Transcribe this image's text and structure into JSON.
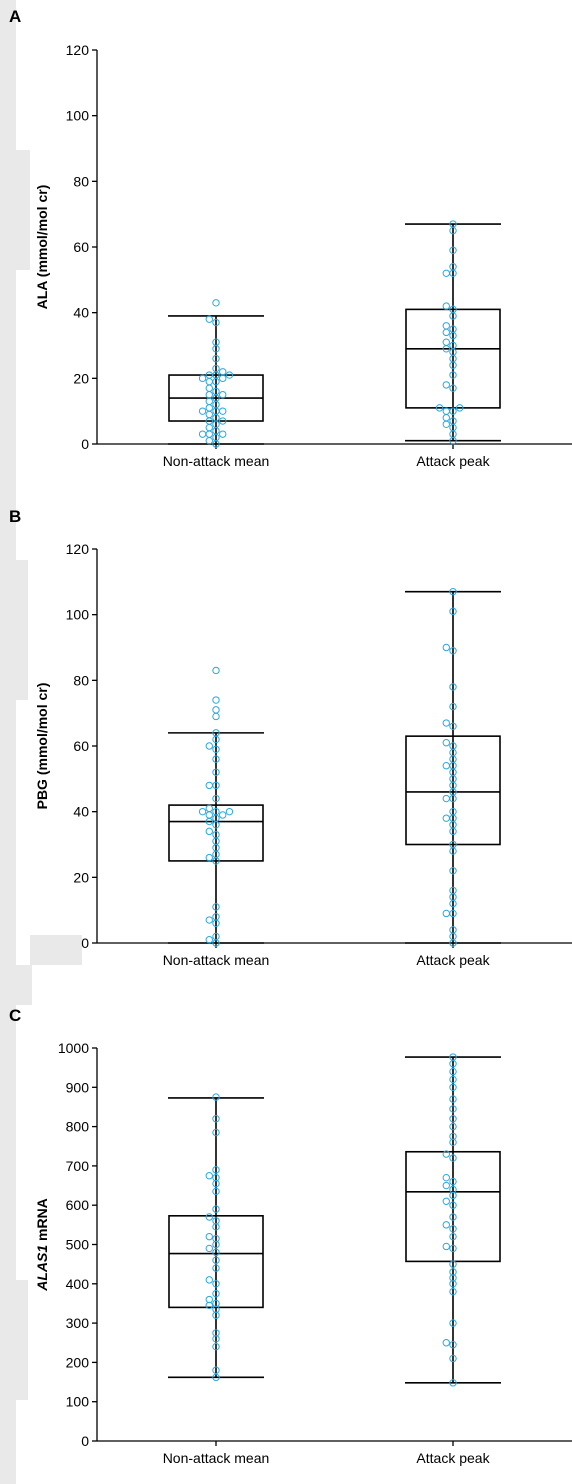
{
  "colors": {
    "point": "#2aa8e0",
    "box": "#000000",
    "background_shape": "#e9e9e9"
  },
  "chart_data": [
    {
      "panel": "A",
      "type": "box",
      "ylabel_parts": [
        {
          "text": "ALA (mmol/mol cr)",
          "italic": false
        }
      ],
      "categories": [
        "Non-attack mean",
        "Attack peak"
      ],
      "ylim": [
        0,
        120
      ],
      "yticks": [
        "0",
        "20",
        "40",
        "60",
        "80",
        "100",
        "120"
      ],
      "series": [
        {
          "category": "Non-attack mean",
          "box": {
            "min": 0,
            "q1": 7,
            "median": 14,
            "q3": 21,
            "max": 39
          },
          "points": [
            0,
            1,
            2,
            3,
            3,
            3,
            4,
            5,
            6,
            7,
            7,
            8,
            9,
            10,
            10,
            10,
            11,
            12,
            13,
            14,
            15,
            15,
            16,
            17,
            19,
            19,
            20,
            20,
            21,
            21,
            21,
            22,
            23,
            26,
            29,
            31,
            37,
            38,
            43
          ]
        },
        {
          "category": "Attack peak",
          "box": {
            "min": 1,
            "q1": 11,
            "median": 29,
            "q3": 41,
            "max": 67
          },
          "points": [
            1,
            3,
            5,
            6,
            7,
            8,
            10,
            10,
            11,
            11,
            17,
            18,
            21,
            24,
            26,
            28,
            29,
            30,
            31,
            33,
            34,
            35,
            36,
            39,
            41,
            42,
            52,
            52,
            54,
            59,
            65,
            67
          ]
        }
      ]
    },
    {
      "panel": "B",
      "type": "box",
      "ylabel_parts": [
        {
          "text": "PBG (mmol/mol cr)",
          "italic": false
        }
      ],
      "categories": [
        "Non-attack mean",
        "Attack peak"
      ],
      "ylim": [
        0,
        120
      ],
      "yticks": [
        "0",
        "20",
        "40",
        "60",
        "80",
        "100",
        "120"
      ],
      "series": [
        {
          "category": "Non-attack mean",
          "box": {
            "min": 0,
            "q1": 25,
            "median": 37,
            "q3": 42,
            "max": 64
          },
          "points": [
            0,
            1,
            2,
            6,
            7,
            8,
            11,
            25,
            26,
            27,
            29,
            31,
            33,
            34,
            36,
            37,
            38,
            39,
            39,
            40,
            40,
            40,
            41,
            44,
            48,
            48,
            52,
            56,
            59,
            60,
            62,
            64,
            69,
            71,
            74,
            83
          ]
        },
        {
          "category": "Attack peak",
          "box": {
            "min": 0,
            "q1": 30,
            "median": 46,
            "q3": 63,
            "max": 107
          },
          "points": [
            0,
            2,
            4,
            9,
            9,
            12,
            14,
            16,
            22,
            28,
            30,
            34,
            36,
            38,
            38,
            40,
            44,
            44,
            46,
            48,
            50,
            52,
            54,
            54,
            56,
            58,
            60,
            61,
            66,
            67,
            72,
            78,
            89,
            90,
            101,
            107
          ]
        }
      ]
    },
    {
      "panel": "C",
      "type": "box",
      "ylabel_parts": [
        {
          "text": "ALAS1",
          "italic": true
        },
        {
          "text": " mRNA",
          "italic": false
        }
      ],
      "categories": [
        "Non-attack mean",
        "Attack peak"
      ],
      "ylim": [
        0,
        1000
      ],
      "yticks": [
        "0",
        "100",
        "200",
        "300",
        "400",
        "500",
        "600",
        "700",
        "800",
        "900",
        "1000"
      ],
      "series": [
        {
          "category": "Non-attack mean",
          "box": {
            "min": 162,
            "q1": 340,
            "median": 477,
            "q3": 573,
            "max": 873
          },
          "points": [
            162,
            180,
            240,
            260,
            275,
            320,
            335,
            345,
            350,
            360,
            375,
            400,
            410,
            440,
            460,
            480,
            490,
            500,
            515,
            520,
            545,
            560,
            570,
            590,
            635,
            655,
            670,
            675,
            690,
            785,
            820,
            875
          ]
        },
        {
          "category": "Attack peak",
          "box": {
            "min": 148,
            "q1": 457,
            "median": 634,
            "q3": 736,
            "max": 977
          },
          "points": [
            148,
            210,
            245,
            250,
            300,
            380,
            400,
            415,
            430,
            450,
            490,
            495,
            520,
            540,
            550,
            570,
            600,
            610,
            625,
            640,
            650,
            660,
            670,
            720,
            730,
            760,
            775,
            800,
            820,
            845,
            870,
            900,
            920,
            940,
            960,
            977
          ]
        }
      ]
    }
  ]
}
